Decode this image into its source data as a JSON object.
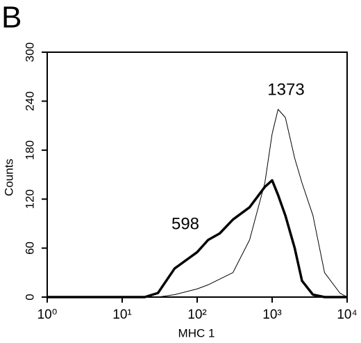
{
  "chart_data": {
    "type": "line",
    "panel_label": "B",
    "xlabel": "MHC 1",
    "ylabel": "Counts",
    "xscale": "log",
    "x": [
      1,
      3,
      10,
      20,
      30,
      50,
      100,
      140,
      200,
      300,
      500,
      800,
      1000,
      1200,
      1500,
      2000,
      2500,
      3500,
      5000,
      8000,
      10000
    ],
    "series": [
      {
        "color": "#000000",
        "width": 1,
        "values": [
          0,
          0,
          0,
          0,
          0,
          3,
          10,
          15,
          22,
          30,
          70,
          140,
          200,
          230,
          220,
          170,
          140,
          100,
          30,
          5,
          0
        ]
      },
      {
        "color": "#000000",
        "width": 3.5,
        "values": [
          0,
          0,
          0,
          0,
          5,
          35,
          55,
          70,
          78,
          95,
          110,
          135,
          143,
          125,
          100,
          60,
          20,
          3,
          0,
          0,
          0
        ]
      }
    ],
    "annotations": [
      {
        "text": "1373"
      },
      {
        "text": "598"
      }
    ],
    "xlim": [
      1,
      10000
    ],
    "xticks": [
      {
        "value": 1,
        "label": "10⁰"
      },
      {
        "value": 10,
        "label": "10¹"
      },
      {
        "value": 100,
        "label": "10²"
      },
      {
        "value": 1000,
        "label": "10³"
      },
      {
        "value": 10000,
        "label": "10⁴"
      }
    ],
    "ylim": [
      0,
      300
    ],
    "yticks": [
      0,
      60,
      120,
      180,
      240,
      300
    ]
  }
}
